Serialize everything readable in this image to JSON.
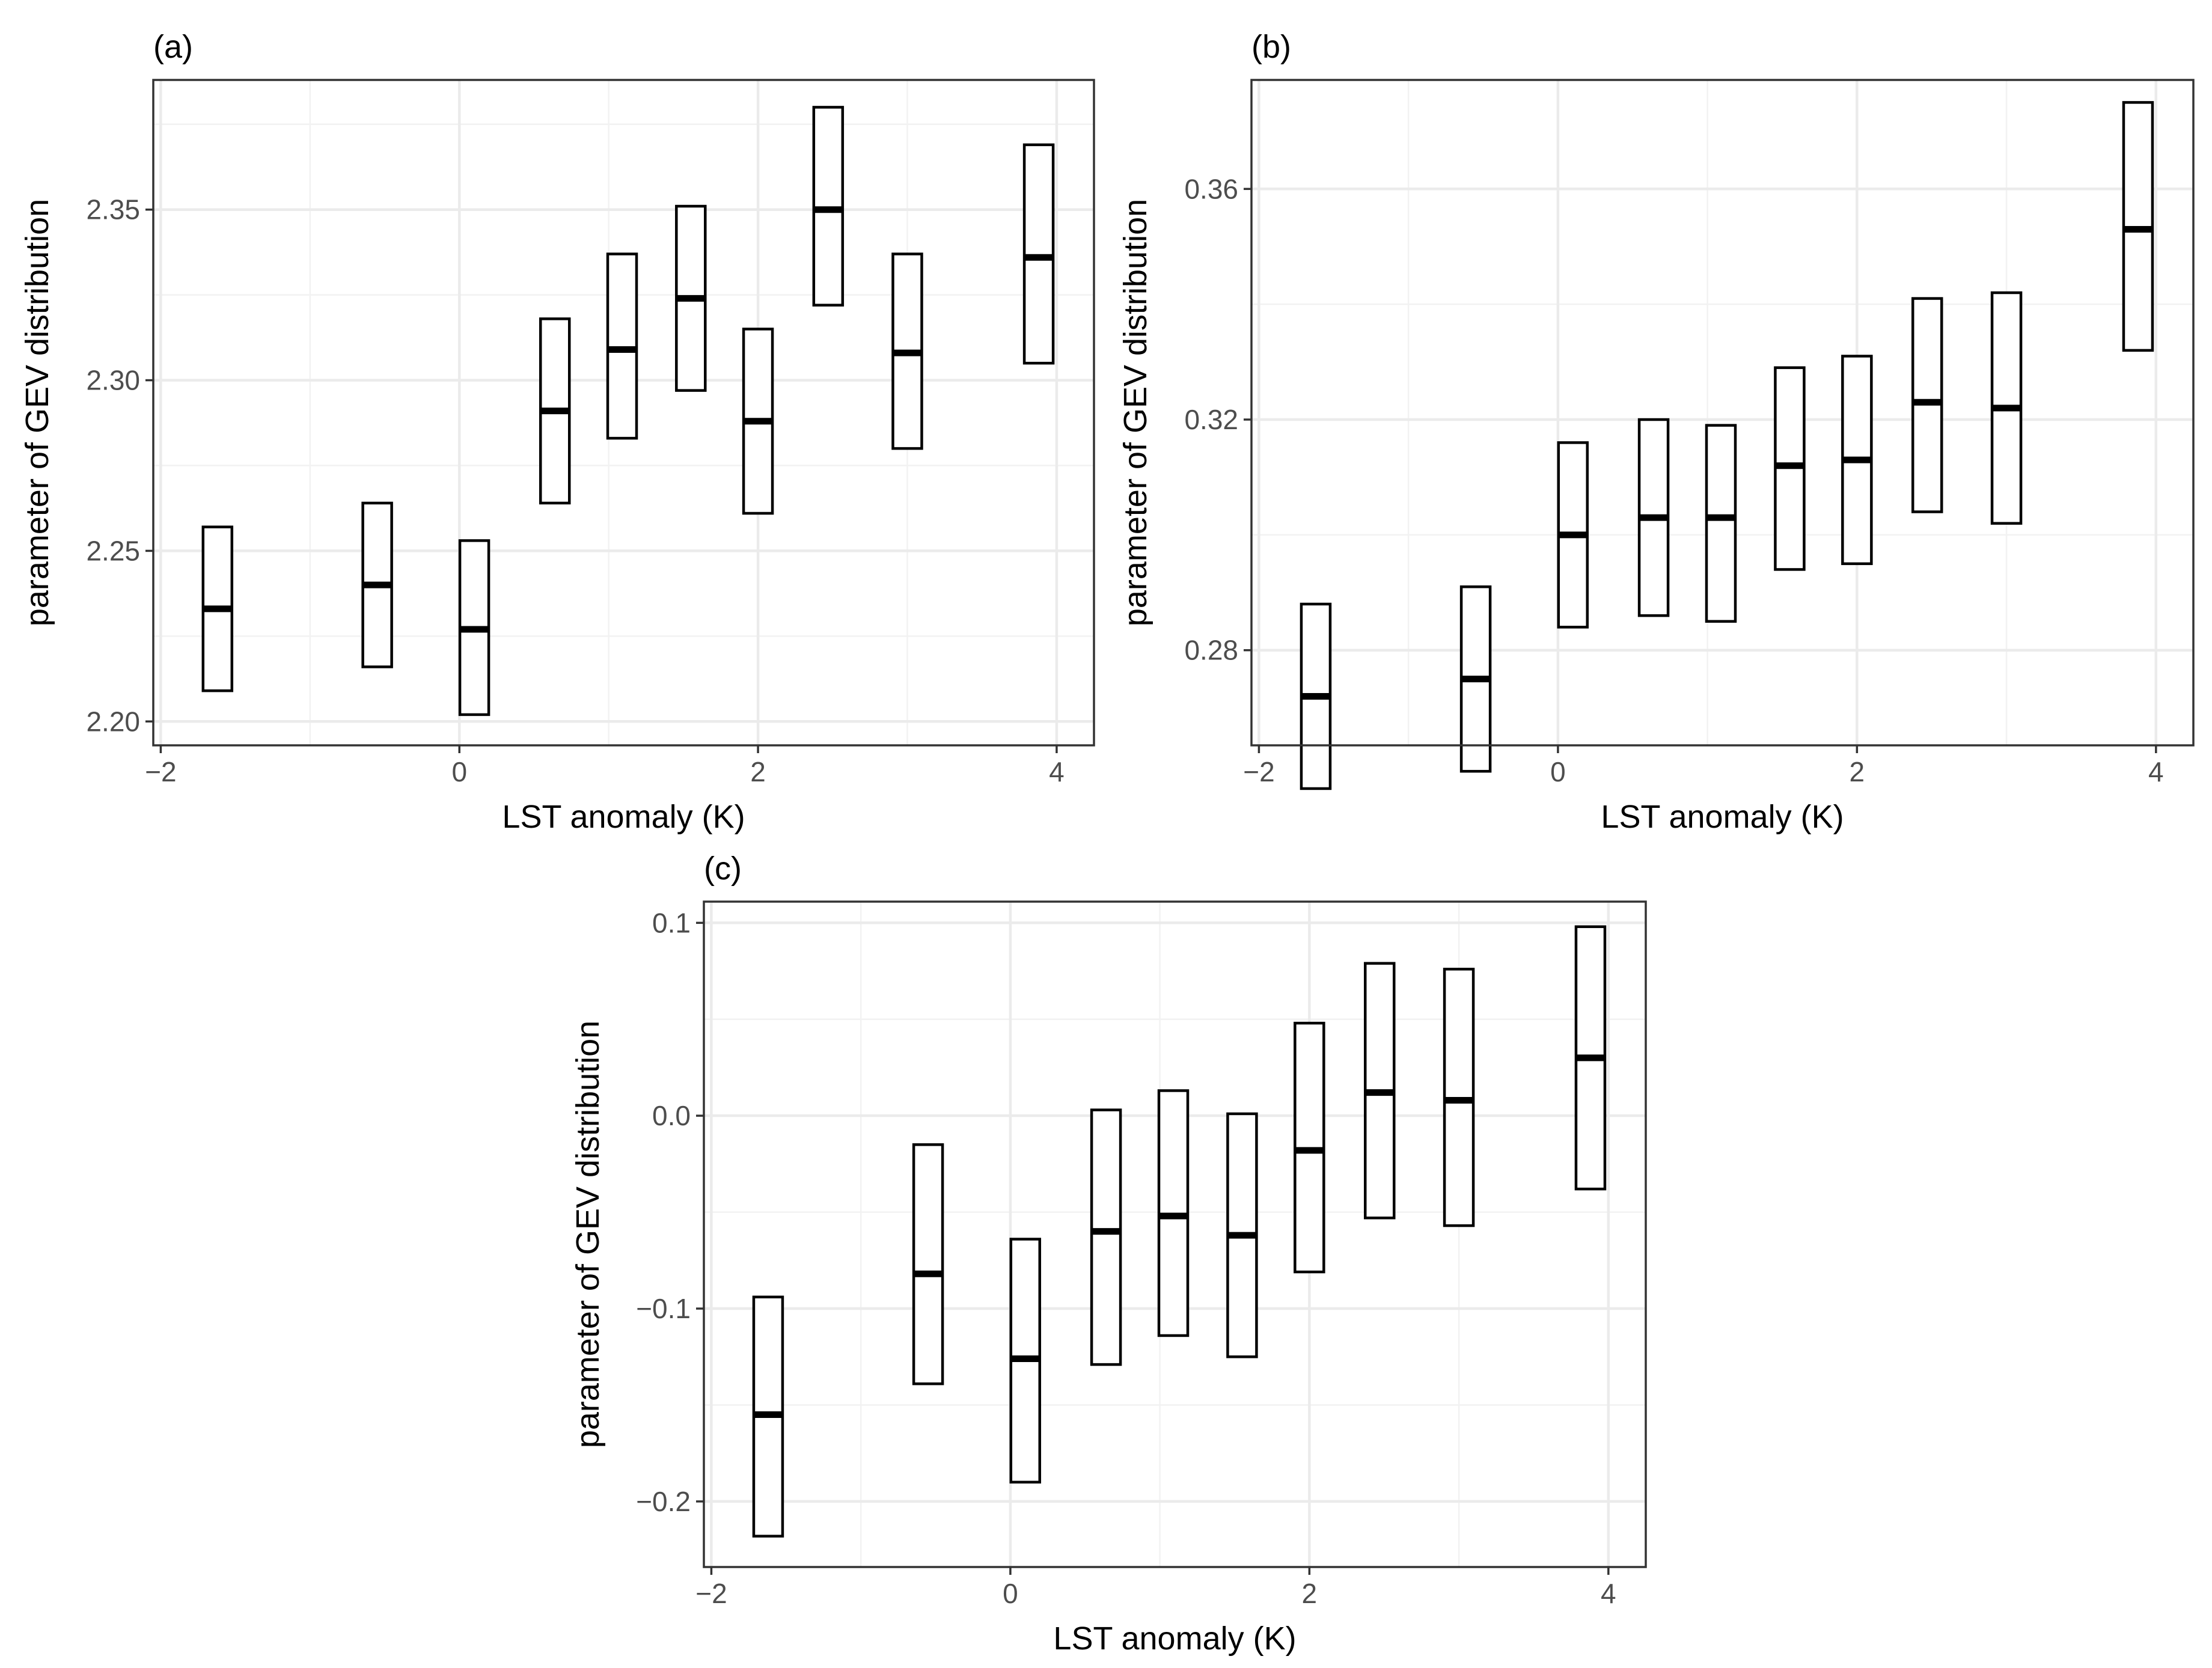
{
  "chart_data": [
    {
      "type": "crossbar",
      "panel_label": "(a)",
      "xlabel": "LST anomaly (K)",
      "ylabel": "parameter of GEV distribution",
      "xlim": [
        -2.05,
        4.25
      ],
      "ylim": [
        2.193,
        2.388
      ],
      "xticks": [
        -2,
        0,
        2,
        4
      ],
      "xtick_labels": [
        "−2",
        "0",
        "2",
        "4"
      ],
      "yticks": [
        2.2,
        2.25,
        2.3,
        2.35
      ],
      "ytick_labels": [
        "2.20",
        "2.25",
        "2.30",
        "2.35"
      ],
      "grid": true,
      "points": [
        {
          "x": -1.62,
          "lower": 2.209,
          "median": 2.233,
          "upper": 2.257
        },
        {
          "x": -0.55,
          "lower": 2.216,
          "median": 2.24,
          "upper": 2.264
        },
        {
          "x": 0.1,
          "lower": 2.202,
          "median": 2.227,
          "upper": 2.253
        },
        {
          "x": 0.64,
          "lower": 2.264,
          "median": 2.291,
          "upper": 2.318
        },
        {
          "x": 1.09,
          "lower": 2.283,
          "median": 2.309,
          "upper": 2.337
        },
        {
          "x": 1.55,
          "lower": 2.297,
          "median": 2.324,
          "upper": 2.351
        },
        {
          "x": 2.0,
          "lower": 2.261,
          "median": 2.288,
          "upper": 2.315
        },
        {
          "x": 2.47,
          "lower": 2.322,
          "median": 2.35,
          "upper": 2.38
        },
        {
          "x": 3.0,
          "lower": 2.28,
          "median": 2.308,
          "upper": 2.337
        },
        {
          "x": 3.88,
          "lower": 2.305,
          "median": 2.336,
          "upper": 2.369
        }
      ]
    },
    {
      "type": "crossbar",
      "panel_label": "(b)",
      "xlabel": "LST anomaly (K)",
      "ylabel": "parameter of GEV distribution",
      "xlim": [
        -2.05,
        4.25
      ],
      "ylim": [
        0.2635,
        0.3789
      ],
      "xticks": [
        -2,
        0,
        2,
        4
      ],
      "xtick_labels": [
        "−2",
        "0",
        "2",
        "4"
      ],
      "yticks": [
        0.28,
        0.32,
        0.36
      ],
      "ytick_labels": [
        "0.28",
        "0.32",
        "0.36"
      ],
      "grid": true,
      "points": [
        {
          "x": -1.62,
          "lower": 0.256,
          "median": 0.272,
          "upper": 0.288
        },
        {
          "x": -0.55,
          "lower": 0.259,
          "median": 0.275,
          "upper": 0.291
        },
        {
          "x": 0.1,
          "lower": 0.284,
          "median": 0.3,
          "upper": 0.316
        },
        {
          "x": 0.64,
          "lower": 0.286,
          "median": 0.303,
          "upper": 0.32
        },
        {
          "x": 1.09,
          "lower": 0.285,
          "median": 0.303,
          "upper": 0.319
        },
        {
          "x": 1.55,
          "lower": 0.294,
          "median": 0.312,
          "upper": 0.329
        },
        {
          "x": 2.0,
          "lower": 0.295,
          "median": 0.313,
          "upper": 0.331
        },
        {
          "x": 2.47,
          "lower": 0.304,
          "median": 0.323,
          "upper": 0.341
        },
        {
          "x": 3.0,
          "lower": 0.302,
          "median": 0.322,
          "upper": 0.342
        },
        {
          "x": 3.88,
          "lower": 0.332,
          "median": 0.353,
          "upper": 0.375
        }
      ]
    },
    {
      "type": "crossbar",
      "panel_label": "(c)",
      "xlabel": "LST anomaly (K)",
      "ylabel": "parameter of GEV distribution",
      "xlim": [
        -2.05,
        4.25
      ],
      "ylim": [
        -0.234,
        0.111
      ],
      "xticks": [
        -2,
        0,
        2,
        4
      ],
      "xtick_labels": [
        "−2",
        "0",
        "2",
        "4"
      ],
      "yticks": [
        -0.2,
        -0.1,
        0.0,
        0.1
      ],
      "ytick_labels": [
        "−0.2",
        "−0.1",
        "0.0",
        "0.1"
      ],
      "grid": true,
      "points": [
        {
          "x": -1.62,
          "lower": -0.218,
          "median": -0.155,
          "upper": -0.094
        },
        {
          "x": -0.55,
          "lower": -0.139,
          "median": -0.082,
          "upper": -0.015
        },
        {
          "x": 0.1,
          "lower": -0.19,
          "median": -0.126,
          "upper": -0.064
        },
        {
          "x": 0.64,
          "lower": -0.129,
          "median": -0.06,
          "upper": 0.003
        },
        {
          "x": 1.09,
          "lower": -0.114,
          "median": -0.052,
          "upper": 0.013
        },
        {
          "x": 1.55,
          "lower": -0.125,
          "median": -0.062,
          "upper": 0.001
        },
        {
          "x": 2.0,
          "lower": -0.081,
          "median": -0.018,
          "upper": 0.048
        },
        {
          "x": 2.47,
          "lower": -0.053,
          "median": 0.012,
          "upper": 0.079
        },
        {
          "x": 3.0,
          "lower": -0.057,
          "median": 0.008,
          "upper": 0.076
        },
        {
          "x": 3.88,
          "lower": -0.038,
          "median": 0.03,
          "upper": 0.098
        }
      ]
    }
  ]
}
